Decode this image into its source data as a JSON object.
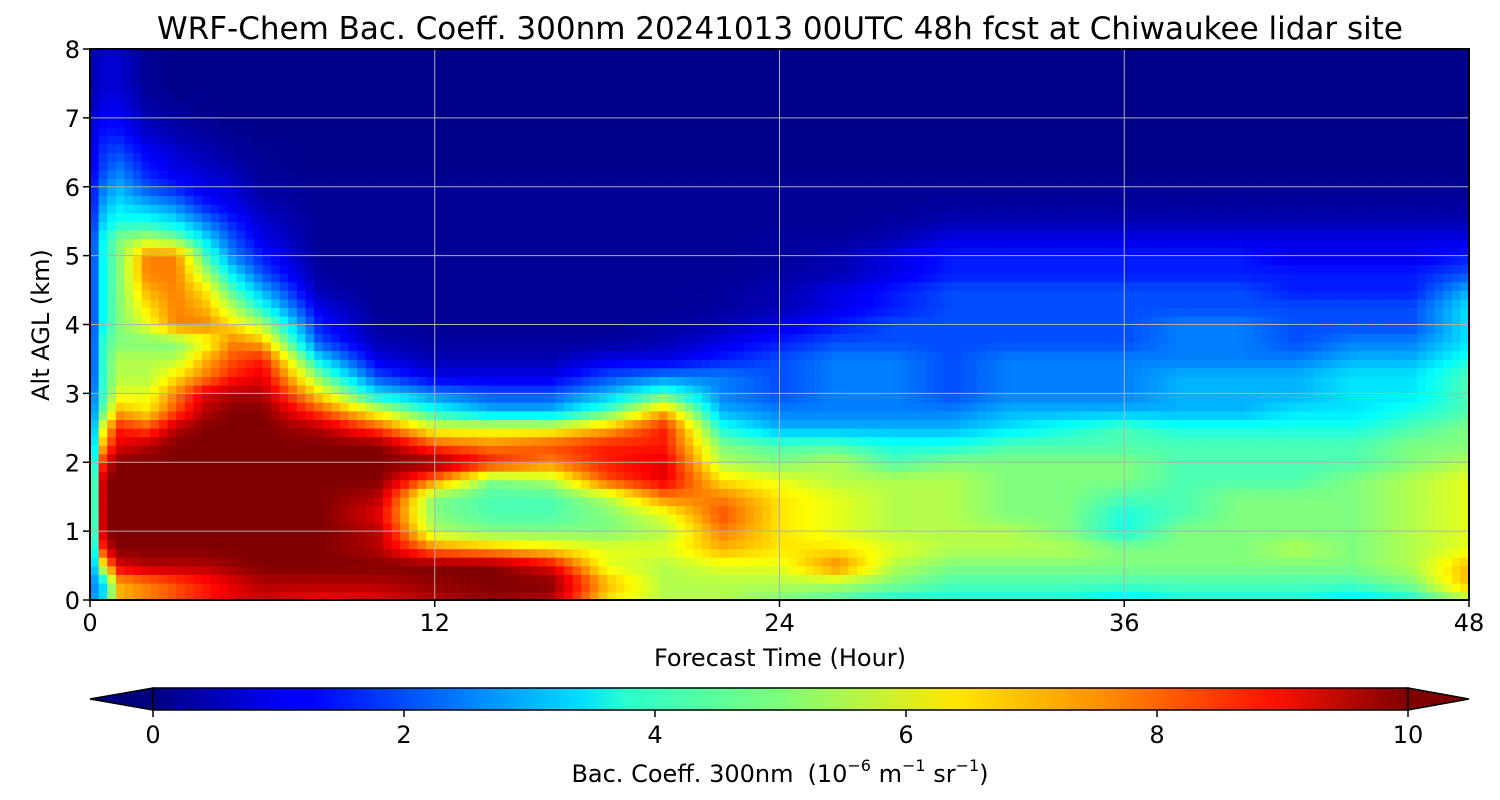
{
  "chart_data": {
    "type": "heatmap",
    "title": "WRF-Chem Bac. Coeff. 300nm  20241013 00UTC 48h fcst at Chiwaukee lidar site",
    "xlabel": "Forecast Time (Hour)",
    "ylabel": "Alt AGL (km)",
    "xlim": [
      0,
      48
    ],
    "ylim": [
      0,
      8
    ],
    "x_ticks": [
      "0",
      "12",
      "24",
      "36",
      "48"
    ],
    "y_ticks": [
      "0",
      "1",
      "2",
      "3",
      "4",
      "5",
      "6",
      "7",
      "8"
    ],
    "grid": true,
    "colorscale": "jet",
    "colorbar": {
      "orientation": "horizontal",
      "placement": "bottom",
      "range": [
        0,
        10
      ],
      "extend": "both",
      "ticks": [
        "0",
        "2",
        "4",
        "6",
        "8",
        "10"
      ],
      "label_text": "Bac. Coeff. 300nm",
      "units_prefix": "(10",
      "units_exp1": "−6",
      "units_mid1": " m",
      "units_exp2": "−1",
      "units_mid2": " sr",
      "units_exp3": "−1",
      "units_suffix": ")"
    },
    "x": [
      0,
      0.5,
      1,
      2,
      3,
      4,
      5,
      6,
      8,
      10,
      12,
      14,
      16,
      18,
      20,
      22,
      24,
      26,
      28,
      30,
      32,
      34,
      36,
      38,
      40,
      42,
      44,
      46,
      48
    ],
    "y": [
      0,
      0.25,
      0.5,
      0.75,
      1,
      1.25,
      1.5,
      1.75,
      2,
      2.25,
      2.5,
      2.75,
      3,
      3.25,
      3.5,
      3.75,
      4,
      4.25,
      4.5,
      4.75,
      5,
      5.25,
      5.5,
      5.75,
      6,
      6.25,
      6.5,
      6.75,
      7,
      7.25,
      7.5,
      7.75,
      8
    ],
    "z": [
      [
        2.5,
        3.5,
        7,
        7.5,
        8,
        8.5,
        9,
        9.2,
        8.8,
        9,
        9.5,
        9.8,
        9.5,
        6.5,
        5.5,
        5.5,
        5,
        4.5,
        4,
        4,
        4,
        4,
        3.5,
        4,
        4,
        4,
        3.5,
        4,
        5.5
      ],
      [
        2.3,
        3.5,
        7,
        7.5,
        8,
        8.5,
        9,
        9.5,
        9.5,
        9.5,
        9.8,
        10,
        10,
        7,
        5.5,
        5.5,
        5.5,
        5.5,
        5,
        4.5,
        4.5,
        4.5,
        4.5,
        4.5,
        4.5,
        4.5,
        4.5,
        5,
        7
      ],
      [
        2,
        6.5,
        9,
        9.5,
        9.5,
        9.5,
        9.8,
        10,
        10,
        10,
        10,
        10,
        9,
        6,
        5.5,
        6,
        6,
        7.5,
        5.5,
        5,
        5,
        5,
        5,
        5,
        5,
        5,
        5,
        5.5,
        7
      ],
      [
        2,
        9,
        10,
        10,
        10,
        10,
        10,
        10,
        10,
        9.5,
        7.5,
        7,
        6.5,
        6,
        6,
        7,
        6.5,
        6.5,
        6,
        5.5,
        5.5,
        5.5,
        5,
        5,
        5,
        5.5,
        5,
        5.5,
        6
      ],
      [
        2,
        10,
        10,
        10,
        10,
        10,
        10,
        10,
        10,
        9.5,
        5.5,
        5,
        5,
        5,
        5.5,
        7.5,
        6.5,
        6,
        5.5,
        5.5,
        5.5,
        5,
        4,
        5,
        5,
        5,
        5,
        5.5,
        6
      ],
      [
        2,
        10,
        10,
        10,
        10,
        10,
        10,
        10,
        10,
        9,
        5,
        4.5,
        4.5,
        5,
        6,
        8,
        6.5,
        6,
        5.5,
        5.5,
        5,
        5,
        4,
        4.5,
        5,
        5,
        5,
        5.5,
        6
      ],
      [
        2,
        10,
        10,
        10,
        10,
        10,
        10,
        10,
        10,
        9.5,
        5,
        4.5,
        4.5,
        5.5,
        7.5,
        7.5,
        6.5,
        6,
        5.5,
        5.5,
        5,
        5,
        4.5,
        4.5,
        5,
        5,
        5,
        5.5,
        6
      ],
      [
        2,
        10,
        10,
        10,
        10,
        10,
        10,
        10,
        10,
        10,
        7.5,
        5,
        5.5,
        8,
        9,
        6.5,
        6,
        5.5,
        5.5,
        5.5,
        5,
        5,
        5,
        4.5,
        4.5,
        4.5,
        5,
        5.5,
        6
      ],
      [
        2,
        9,
        10,
        10,
        10,
        10,
        10,
        10,
        10,
        10,
        10,
        8.5,
        7.5,
        8.5,
        9,
        5.5,
        5,
        5.5,
        4.5,
        5,
        5,
        5,
        5,
        4.5,
        4.5,
        4.5,
        4.5,
        5,
        5.5
      ],
      [
        2,
        7.5,
        9,
        9.5,
        10,
        10,
        10,
        10,
        10,
        10,
        8,
        7.5,
        8,
        8.5,
        8.5,
        5,
        4.5,
        4.5,
        4,
        4,
        4.5,
        4.5,
        4.5,
        4.5,
        4.5,
        4.5,
        4.5,
        5,
        5
      ],
      [
        2,
        6.5,
        8.5,
        8,
        9.5,
        10,
        10,
        10,
        9.5,
        8,
        6,
        6,
        6,
        7,
        8.5,
        4,
        3,
        3,
        3,
        3,
        3.5,
        4,
        4.5,
        4,
        4,
        4,
        4,
        4.5,
        5
      ],
      [
        2,
        5,
        7,
        6.5,
        8,
        9.5,
        10,
        10,
        8,
        6,
        4,
        3,
        3,
        4.5,
        7,
        3,
        2.5,
        2.5,
        2.5,
        2.5,
        3,
        3,
        3,
        3,
        3,
        3.5,
        3.5,
        4,
        4.5
      ],
      [
        1.8,
        4.5,
        6,
        6,
        7.5,
        9,
        9.5,
        9.5,
        6.5,
        3.5,
        2.5,
        2,
        2,
        3,
        4.5,
        2.5,
        2,
        2.5,
        2.5,
        2,
        2.5,
        2.5,
        2.5,
        3,
        3,
        3,
        3.5,
        3.5,
        4.5
      ],
      [
        1.5,
        4.5,
        5.5,
        5.5,
        6.5,
        7.5,
        8.5,
        9,
        5,
        2,
        1,
        1,
        1,
        2,
        2.5,
        2.5,
        2,
        2.5,
        2.5,
        2,
        2.5,
        2.5,
        2.5,
        3,
        3,
        3,
        3.5,
        3.5,
        4.5
      ],
      [
        1.5,
        4.5,
        5.5,
        5.5,
        5.5,
        7,
        8,
        8.5,
        3.5,
        1,
        0.5,
        0.5,
        0.5,
        1,
        1,
        1.5,
        2,
        2.5,
        2.5,
        2,
        2.5,
        2.5,
        2.5,
        2.5,
        2.5,
        2.5,
        3,
        3,
        4
      ],
      [
        1.5,
        4.5,
        5,
        5,
        5,
        6,
        7.5,
        7,
        2,
        0.5,
        0.3,
        0.3,
        0.3,
        0.3,
        0.5,
        1,
        1.5,
        2,
        2,
        2,
        2,
        2,
        2,
        2.5,
        2.5,
        2,
        2.5,
        2.5,
        3.5
      ],
      [
        1.5,
        4,
        5,
        6,
        7.5,
        7.5,
        6.5,
        5.5,
        1.5,
        0.3,
        0.2,
        0.2,
        0.2,
        0.2,
        0.3,
        0.5,
        1,
        1.5,
        2,
        2,
        2,
        2,
        2,
        2.5,
        2.5,
        2,
        2,
        2,
        3.5
      ],
      [
        1.5,
        4,
        5,
        6.5,
        7.5,
        7,
        5.5,
        4,
        1,
        0.2,
        0.2,
        0.2,
        0.2,
        0.2,
        0.2,
        0.3,
        0.5,
        1,
        1.5,
        2,
        2,
        2,
        2,
        2,
        2,
        2,
        2,
        2,
        3.5
      ],
      [
        1.5,
        4,
        5,
        7,
        7.5,
        6.5,
        4.5,
        3,
        0.5,
        0.2,
        0.2,
        0.2,
        0.2,
        0.2,
        0.2,
        0.3,
        0.5,
        1,
        1.5,
        2,
        2,
        2,
        2,
        2,
        2,
        1.5,
        1.5,
        1.5,
        3
      ],
      [
        1.5,
        4,
        5,
        7.5,
        7.5,
        5.5,
        3.5,
        2,
        0.3,
        0.2,
        0.2,
        0.2,
        0.2,
        0.2,
        0.2,
        0.2,
        0.3,
        0.5,
        1,
        1.5,
        1.5,
        1.5,
        1.5,
        1.5,
        1.5,
        1.5,
        1.5,
        1.5,
        2
      ],
      [
        1.5,
        4,
        5,
        7.5,
        7.5,
        4.5,
        2.5,
        1.5,
        0.2,
        0.2,
        0.2,
        0.2,
        0.2,
        0.2,
        0.2,
        0.2,
        0.3,
        0.5,
        1,
        1.5,
        1.5,
        1.5,
        1.5,
        1.5,
        1.5,
        1,
        1,
        1,
        1.5
      ],
      [
        1.5,
        4,
        5,
        5.5,
        5,
        3.5,
        2,
        1,
        0.2,
        0.2,
        0.2,
        0.2,
        0.2,
        0.2,
        0.2,
        0.2,
        0.3,
        0.3,
        0.5,
        1,
        1,
        1,
        1,
        1,
        1,
        1,
        1,
        1,
        1
      ],
      [
        1.3,
        3.5,
        4,
        4,
        3.5,
        2.5,
        1.5,
        0.8,
        0.2,
        0.2,
        0.2,
        0.2,
        0.2,
        0.2,
        0.2,
        0.2,
        0.2,
        0.2,
        0.3,
        0.5,
        0.5,
        0.5,
        0.5,
        0.5,
        0.5,
        0.5,
        0.5,
        0.5,
        0.5
      ],
      [
        1.2,
        3,
        3.5,
        3,
        2.5,
        1.5,
        1,
        0.5,
        0.2,
        0.2,
        0.2,
        0.2,
        0.2,
        0.2,
        0.2,
        0.2,
        0.2,
        0.2,
        0.2,
        0.3,
        0.3,
        0.3,
        0.3,
        0.3,
        0.3,
        0.3,
        0.3,
        0.3,
        0.3
      ],
      [
        1.2,
        2.5,
        3,
        2,
        1.5,
        1,
        0.8,
        0.3,
        0.2,
        0.2,
        0.2,
        0.2,
        0.2,
        0.2,
        0.2,
        0.2,
        0.2,
        0.2,
        0.2,
        0.2,
        0.2,
        0.2,
        0.2,
        0.2,
        0.2,
        0.2,
        0.2,
        0.2,
        0.2
      ],
      [
        1,
        2,
        2.5,
        1.5,
        1,
        0.8,
        0.5,
        0.2,
        0.1,
        0.1,
        0.1,
        0.1,
        0.1,
        0.1,
        0.1,
        0.1,
        0.1,
        0.1,
        0.1,
        0.1,
        0.1,
        0.1,
        0.1,
        0.1,
        0.1,
        0.1,
        0.1,
        0.1,
        0.1
      ],
      [
        1,
        1.8,
        2,
        1.2,
        0.8,
        0.5,
        0.3,
        0.2,
        0.1,
        0.1,
        0.1,
        0.1,
        0.1,
        0.1,
        0.1,
        0.1,
        0.1,
        0.1,
        0.1,
        0.1,
        0.1,
        0.1,
        0.1,
        0.1,
        0.1,
        0.1,
        0.1,
        0.1,
        0.1
      ],
      [
        0.8,
        1.5,
        1.5,
        0.8,
        0.5,
        0.3,
        0.2,
        0.1,
        0.1,
        0.1,
        0.1,
        0.1,
        0.1,
        0.1,
        0.1,
        0.1,
        0.1,
        0.1,
        0.1,
        0.1,
        0.1,
        0.1,
        0.1,
        0.1,
        0.1,
        0.1,
        0.1,
        0.1,
        0.1
      ],
      [
        0.8,
        1.2,
        1.2,
        0.5,
        0.3,
        0.2,
        0.1,
        0.1,
        0.1,
        0.1,
        0.1,
        0.1,
        0.1,
        0.1,
        0.1,
        0.1,
        0.1,
        0.1,
        0.1,
        0.1,
        0.1,
        0.1,
        0.1,
        0.1,
        0.1,
        0.1,
        0.1,
        0.1,
        0.1
      ],
      [
        0.5,
        1,
        1,
        0.3,
        0.2,
        0.1,
        0.1,
        0.1,
        0.1,
        0.1,
        0.1,
        0.1,
        0.1,
        0.1,
        0.1,
        0.1,
        0.1,
        0.1,
        0.1,
        0.1,
        0.1,
        0.1,
        0.1,
        0.1,
        0.1,
        0.1,
        0.1,
        0.1,
        0.1
      ],
      [
        0.5,
        0.8,
        0.8,
        0.2,
        0.1,
        0.1,
        0.1,
        0.1,
        0.1,
        0.1,
        0.1,
        0.1,
        0.1,
        0.1,
        0.1,
        0.1,
        0.1,
        0.1,
        0.1,
        0.1,
        0.1,
        0.1,
        0.1,
        0.1,
        0.1,
        0.1,
        0.1,
        0.1,
        0.1
      ],
      [
        0.5,
        0.8,
        0.8,
        0.2,
        0.1,
        0.1,
        0.1,
        0.1,
        0.1,
        0.1,
        0.1,
        0.1,
        0.1,
        0.1,
        0.1,
        0.1,
        0.1,
        0.1,
        0.1,
        0.1,
        0.1,
        0.1,
        0.1,
        0.1,
        0.1,
        0.1,
        0.1,
        0.1,
        0.1
      ],
      [
        0.5,
        0.8,
        0.8,
        0.2,
        0.1,
        0.1,
        0.1,
        0.1,
        0.1,
        0.1,
        0.1,
        0.1,
        0.1,
        0.1,
        0.1,
        0.1,
        0.1,
        0.1,
        0.1,
        0.1,
        0.1,
        0.1,
        0.1,
        0.1,
        0.1,
        0.1,
        0.1,
        0.1,
        0.1
      ]
    ]
  }
}
